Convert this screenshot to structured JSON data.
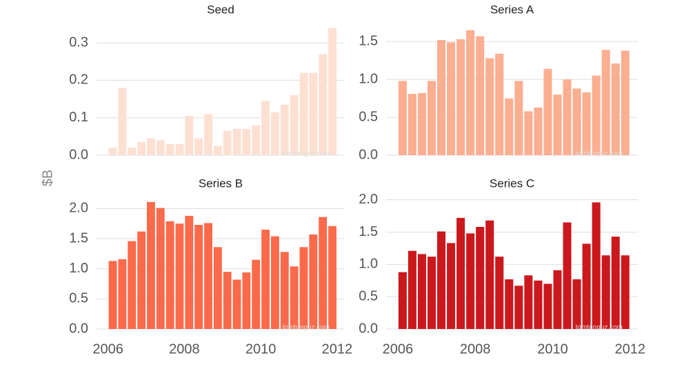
{
  "chart_data": [
    {
      "type": "bar",
      "title": "Seed",
      "y_label": "$B",
      "watermark": "tomtunguz.com",
      "color": "#fde0d2",
      "x": [
        2006,
        2006.25,
        2006.5,
        2006.75,
        2007,
        2007.25,
        2007.5,
        2007.75,
        2008,
        2008.25,
        2008.5,
        2008.75,
        2009,
        2009.25,
        2009.5,
        2009.75,
        2010,
        2010.25,
        2010.5,
        2010.75,
        2011,
        2011.25,
        2011.5,
        2011.75
      ],
      "values": [
        0.02,
        0.18,
        0.02,
        0.035,
        0.045,
        0.04,
        0.03,
        0.03,
        0.105,
        0.045,
        0.11,
        0.025,
        0.065,
        0.07,
        0.07,
        0.08,
        0.145,
        0.115,
        0.135,
        0.16,
        0.22,
        0.22,
        0.27,
        0.34
      ],
      "xlim": [
        2005.7,
        2012.2
      ],
      "ylim": [
        0,
        0.35
      ],
      "yticks": [
        {
          "value": 0,
          "label": "0.0"
        },
        0.1,
        0.2,
        0.3
      ],
      "grid": true
    },
    {
      "type": "bar",
      "title": "Series A",
      "watermark": "tomtunguz.com",
      "color": "#fcae91",
      "x": [
        2006,
        2006.25,
        2006.5,
        2006.75,
        2007,
        2007.25,
        2007.5,
        2007.75,
        2008,
        2008.25,
        2008.5,
        2008.75,
        2009,
        2009.25,
        2009.5,
        2009.75,
        2010,
        2010.25,
        2010.5,
        2010.75,
        2011,
        2011.25,
        2011.5,
        2011.75
      ],
      "values": [
        0.98,
        0.81,
        0.82,
        0.98,
        1.52,
        1.49,
        1.53,
        1.65,
        1.57,
        1.28,
        1.34,
        0.75,
        0.98,
        0.58,
        0.63,
        1.14,
        0.8,
        1.0,
        0.88,
        0.83,
        1.05,
        1.39,
        1.21,
        1.38
      ],
      "xlim": [
        2005.7,
        2012.2
      ],
      "ylim": [
        0,
        1.73
      ],
      "yticks": [
        {
          "value": 0,
          "label": "0.0"
        },
        0.5,
        {
          "value": 1,
          "label": "1.0"
        },
        1.5
      ],
      "grid": true
    },
    {
      "type": "bar",
      "title": "Series B",
      "watermark": "tomtunguz.com",
      "color": "#fb6a4a",
      "x": [
        2006,
        2006.25,
        2006.5,
        2006.75,
        2007,
        2007.25,
        2007.5,
        2007.75,
        2008,
        2008.25,
        2008.5,
        2008.75,
        2009,
        2009.25,
        2009.5,
        2009.75,
        2010,
        2010.25,
        2010.5,
        2010.75,
        2011,
        2011.25,
        2011.5,
        2011.75
      ],
      "values": [
        1.13,
        1.16,
        1.46,
        1.62,
        2.11,
        2.01,
        1.79,
        1.75,
        1.88,
        1.73,
        1.76,
        1.36,
        0.95,
        0.82,
        0.94,
        1.15,
        1.65,
        1.54,
        1.28,
        1.04,
        1.36,
        1.57,
        1.86,
        1.71
      ],
      "xlim": [
        2005.7,
        2012.2
      ],
      "ylim": [
        0,
        2.2
      ],
      "yticks": [
        {
          "value": 0,
          "label": "0.0"
        },
        0.5,
        {
          "value": 1,
          "label": "1.0"
        },
        1.5,
        {
          "value": 2,
          "label": "2.0"
        }
      ],
      "xticks": [
        2006,
        2008,
        2010,
        2012
      ],
      "grid": true
    },
    {
      "type": "bar",
      "title": "Series C",
      "watermark": "tomtunguz.com",
      "color": "#cb181d",
      "x": [
        2006,
        2006.25,
        2006.5,
        2006.75,
        2007,
        2007.25,
        2007.5,
        2007.75,
        2008,
        2008.25,
        2008.5,
        2008.75,
        2009,
        2009.25,
        2009.5,
        2009.75,
        2010,
        2010.25,
        2010.5,
        2010.75,
        2011,
        2011.25,
        2011.5,
        2011.75
      ],
      "values": [
        0.88,
        1.21,
        1.16,
        1.12,
        1.51,
        1.33,
        1.72,
        1.48,
        1.58,
        1.68,
        1.12,
        0.77,
        0.67,
        0.83,
        0.75,
        0.7,
        0.91,
        1.65,
        0.77,
        1.32,
        1.96,
        1.14,
        1.43,
        1.14
      ],
      "xlim": [
        2005.7,
        2012.2
      ],
      "ylim": [
        0,
        2.05
      ],
      "yticks": [
        {
          "value": 0,
          "label": "0.0"
        },
        0.5,
        {
          "value": 1,
          "label": "1.0"
        },
        1.5,
        {
          "value": 2,
          "label": "2.0"
        }
      ],
      "xticks": [
        2006,
        2008,
        2010,
        2012
      ],
      "grid": true
    }
  ]
}
